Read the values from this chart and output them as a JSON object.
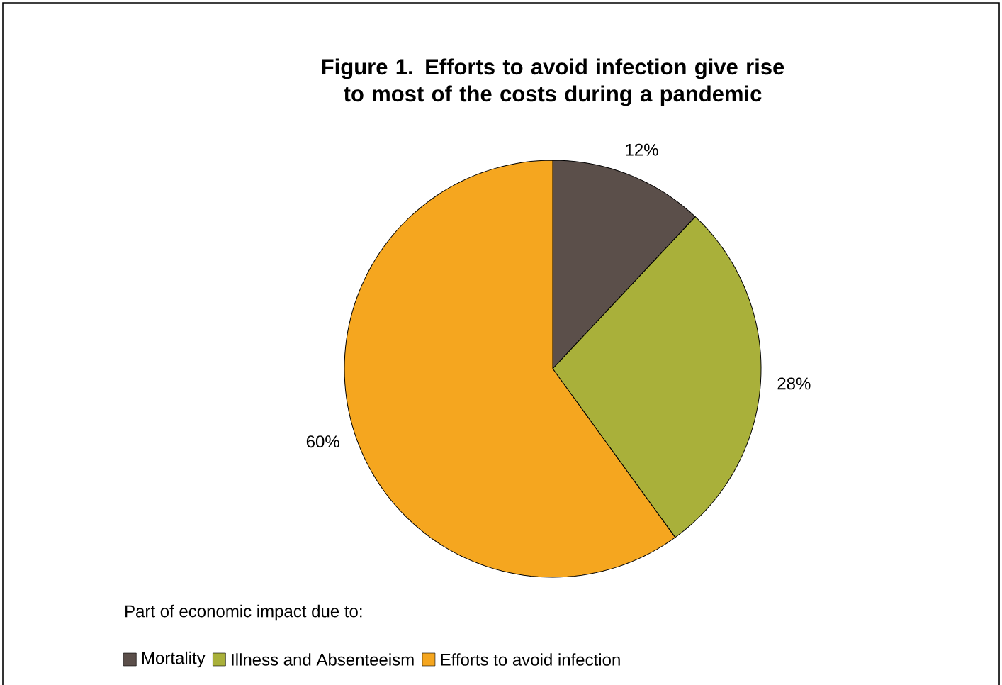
{
  "chart_data": {
    "type": "pie",
    "title": "Figure 1.  Efforts to avoid infection give rise to most of the costs during a pandemic",
    "categories": [
      "Mortality",
      "Illness and Absenteeism",
      "Efforts to avoid infection"
    ],
    "values": [
      12,
      28,
      60
    ],
    "colors": [
      "#5b4f4a",
      "#a9b03a",
      "#f5a61f"
    ],
    "value_labels": [
      "12%",
      "28%",
      "60%"
    ],
    "legend": "bottom",
    "legend_title": "Part of economic impact due to:"
  }
}
